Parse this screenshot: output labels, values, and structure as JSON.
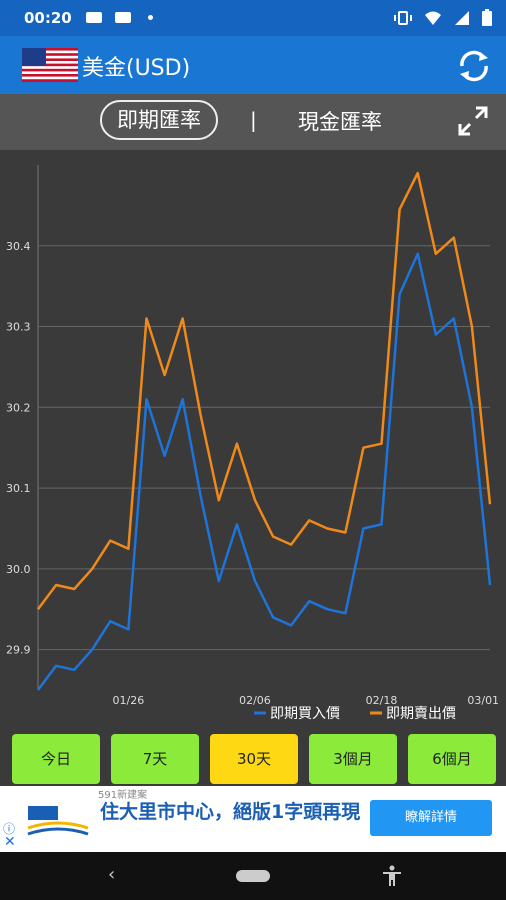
{
  "status_bar": {
    "time": "00:20"
  },
  "app": {
    "title": "美金(USD)"
  },
  "tabs": {
    "active": "即期匯率",
    "separator": "|",
    "other": "現金匯率"
  },
  "chart_data": {
    "type": "line",
    "y_ticks": [
      "29.9",
      "30.0",
      "30.1",
      "30.2",
      "30.3",
      "30.4"
    ],
    "ylim": [
      29.85,
      30.5
    ],
    "x_ticks": [
      {
        "label": "01/26",
        "pos": 0.2
      },
      {
        "label": "02/06",
        "pos": 0.48
      },
      {
        "label": "02/18",
        "pos": 0.76
      },
      {
        "label": "03/01",
        "pos": 0.985
      }
    ],
    "legend": {
      "position": "bottom-right"
    },
    "series": [
      {
        "name": "即期買入價",
        "color": "#1e74d8",
        "values": [
          29.85,
          29.88,
          29.875,
          29.9,
          29.935,
          29.925,
          30.21,
          30.14,
          30.21,
          30.09,
          29.985,
          30.055,
          29.985,
          29.94,
          29.93,
          29.96,
          29.95,
          29.945,
          30.05,
          30.055,
          30.34,
          30.39,
          30.29,
          30.31,
          30.2,
          29.98
        ]
      },
      {
        "name": "即期賣出價",
        "color": "#ef8a1a",
        "values": [
          29.95,
          29.98,
          29.975,
          30.0,
          30.035,
          30.025,
          30.31,
          30.24,
          30.31,
          30.19,
          30.085,
          30.155,
          30.085,
          30.04,
          30.03,
          30.06,
          30.05,
          30.045,
          30.15,
          30.155,
          30.445,
          30.49,
          30.39,
          30.41,
          30.3,
          30.08
        ]
      }
    ]
  },
  "ranges": [
    {
      "label": "今日",
      "active": false
    },
    {
      "label": "7天",
      "active": false
    },
    {
      "label": "30天",
      "active": true
    },
    {
      "label": "3個月",
      "active": false
    },
    {
      "label": "6個月",
      "active": false
    }
  ],
  "ad": {
    "source": "591新建案",
    "headline": "住大里市中心，絕版1字頭再現",
    "cta": "瞭解詳情"
  }
}
